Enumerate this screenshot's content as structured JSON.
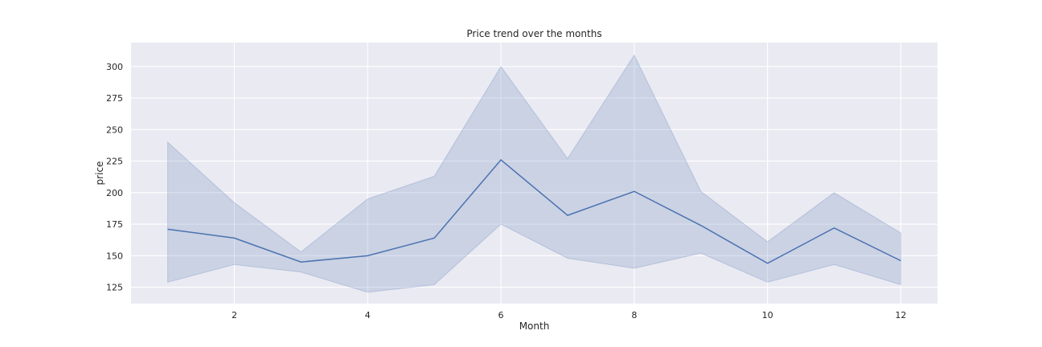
{
  "chart_data": {
    "type": "line",
    "title": "Price trend over the months",
    "xlabel": "Month",
    "ylabel": "price",
    "xlim": [
      0.45,
      12.55
    ],
    "ylim": [
      112,
      319
    ],
    "xticks": [
      2,
      4,
      6,
      8,
      10,
      12
    ],
    "yticks": [
      125,
      150,
      175,
      200,
      225,
      250,
      275,
      300
    ],
    "grid": true,
    "background": "#eaeaf2",
    "line_color": "#4c72b0",
    "band_color": "#4c72b0",
    "series": [
      {
        "x": [
          1,
          2,
          3,
          4,
          5,
          6,
          7,
          8,
          9,
          10,
          11,
          12
        ],
        "y": [
          171,
          164,
          145,
          150,
          164,
          226,
          182,
          201,
          174,
          144,
          172,
          146
        ],
        "ci_lower": [
          129,
          143,
          137,
          121,
          127,
          175,
          148,
          140,
          152,
          129,
          143,
          127
        ],
        "ci_upper": [
          240,
          192,
          153,
          195,
          213,
          300,
          227,
          309,
          201,
          161,
          200,
          168
        ]
      }
    ]
  }
}
